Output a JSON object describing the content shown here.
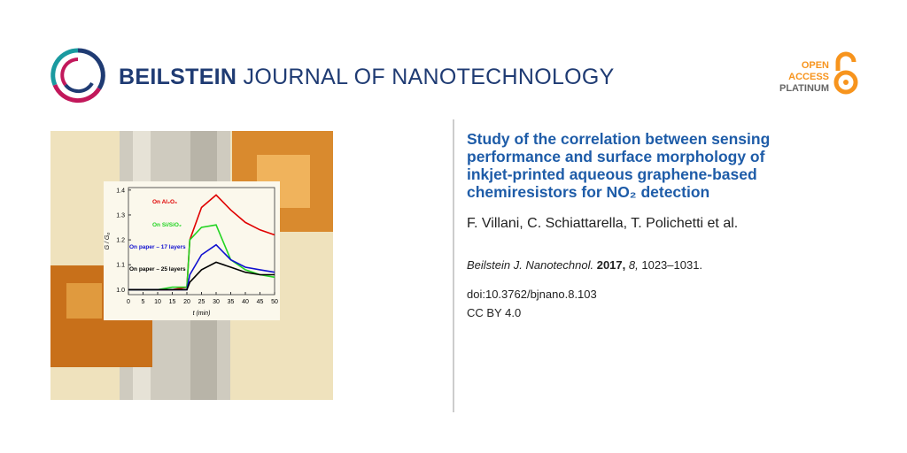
{
  "header": {
    "brand": "BEILSTEIN",
    "journal": "JOURNAL OF NANOTECHNOLOGY",
    "badge": [
      "OPEN",
      "ACCESS",
      "PLATINUM"
    ]
  },
  "article": {
    "title_lines": [
      "Study of the correlation between sensing",
      "performance and surface morphology of",
      "inkjet-printed aqueous graphene-based",
      "chemiresistors for NO₂ detection"
    ],
    "authors": "F. Villani, C. Schiattarella, T. Polichetti et al.",
    "citation": {
      "journal": "Beilstein J. Nanotechnol.",
      "year": "2017,",
      "volume": "8,",
      "pages": "1023–1031."
    },
    "doi": "doi:10.3762/bjnano.8.103",
    "license": "CC BY 4.0"
  },
  "graphical_abstract": {
    "chart_data": {
      "type": "line",
      "x_label": "t (min)",
      "y_label": "G / G₀",
      "x": [
        0,
        5,
        10,
        15,
        20,
        21,
        25,
        30,
        35,
        40,
        45,
        50
      ],
      "xlim": [
        0,
        50
      ],
      "xticks": [
        0,
        5,
        10,
        15,
        20,
        25,
        30,
        35,
        40,
        45,
        50
      ],
      "ylim": [
        0.98,
        1.41
      ],
      "yticks": [
        {
          "value": 1,
          "label": "1.0"
        },
        1.1,
        1.2,
        1.3,
        1.4
      ],
      "series": [
        {
          "name": "On Al₂O₃",
          "color": "#e00000",
          "values": [
            1.0,
            1.0,
            1.0,
            1.0,
            1.01,
            1.2,
            1.33,
            1.38,
            1.32,
            1.27,
            1.24,
            1.22
          ]
        },
        {
          "name": "On Si/SiO₂",
          "color": "#22d422",
          "values": [
            1.0,
            1.0,
            1.0,
            1.01,
            1.01,
            1.2,
            1.25,
            1.26,
            1.12,
            1.08,
            1.06,
            1.05
          ]
        },
        {
          "name": "On paper – 17 layers",
          "color": "#1010d0",
          "values": [
            1.0,
            1.0,
            1.0,
            1.0,
            1.0,
            1.06,
            1.14,
            1.18,
            1.12,
            1.09,
            1.08,
            1.07
          ]
        },
        {
          "name": "On paper – 25 layers",
          "color": "#000000",
          "values": [
            1.0,
            1.0,
            1.0,
            1.0,
            1.0,
            1.03,
            1.08,
            1.11,
            1.09,
            1.07,
            1.06,
            1.06
          ]
        }
      ]
    }
  }
}
